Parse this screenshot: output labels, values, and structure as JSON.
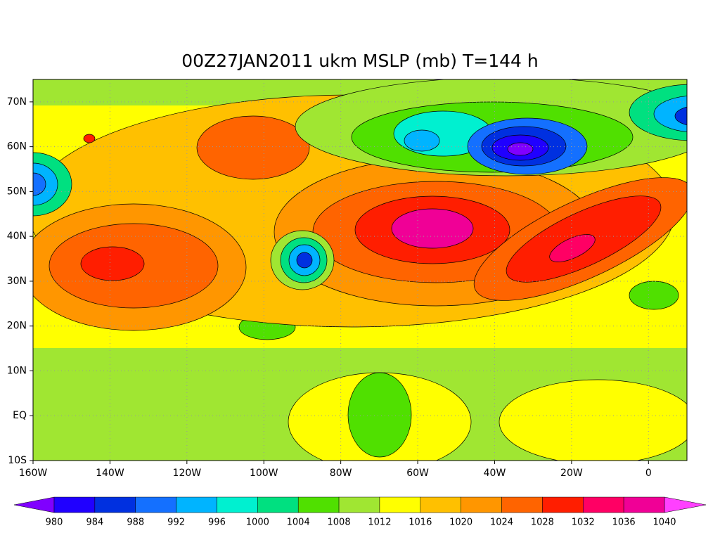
{
  "title": "00Z27JAN2011 ukm MSLP (mb) T=144 h",
  "map": {
    "lon_range": [
      -160,
      10
    ],
    "lat_range": [
      -10,
      75
    ],
    "lon_ticks": [
      {
        "value": -160,
        "label": "160W"
      },
      {
        "value": -140,
        "label": "140W"
      },
      {
        "value": -120,
        "label": "120W"
      },
      {
        "value": -100,
        "label": "100W"
      },
      {
        "value": -80,
        "label": "80W"
      },
      {
        "value": -60,
        "label": "60W"
      },
      {
        "value": -40,
        "label": "40W"
      },
      {
        "value": -20,
        "label": "20W"
      },
      0
    ],
    "lat_ticks": [
      {
        "value": 70,
        "label": "70N"
      },
      {
        "value": 60,
        "label": "60N"
      },
      {
        "value": 50,
        "label": "50N"
      },
      {
        "value": 40,
        "label": "40N"
      },
      {
        "value": 30,
        "label": "30N"
      },
      {
        "value": 20,
        "label": "20N"
      },
      {
        "value": 10,
        "label": "10N"
      },
      {
        "value": 0,
        "label": "EQ"
      },
      {
        "value": -10,
        "label": "10S"
      }
    ]
  },
  "colorbar": {
    "levels": [
      980,
      984,
      988,
      992,
      996,
      1000,
      1004,
      1008,
      1012,
      1016,
      1020,
      1024,
      1028,
      1032,
      1036,
      1040
    ],
    "colors": [
      "#2000ff",
      "#0030e0",
      "#1470ff",
      "#00b4ff",
      "#00f0d0",
      "#00e080",
      "#50e000",
      "#a0e632",
      "#ffff00",
      "#ffc000",
      "#ff9600",
      "#ff6400",
      "#ff1e00",
      "#ff0064",
      "#f00096"
    ],
    "under_color": "#8000ff",
    "over_color": "#ff40ff"
  }
}
